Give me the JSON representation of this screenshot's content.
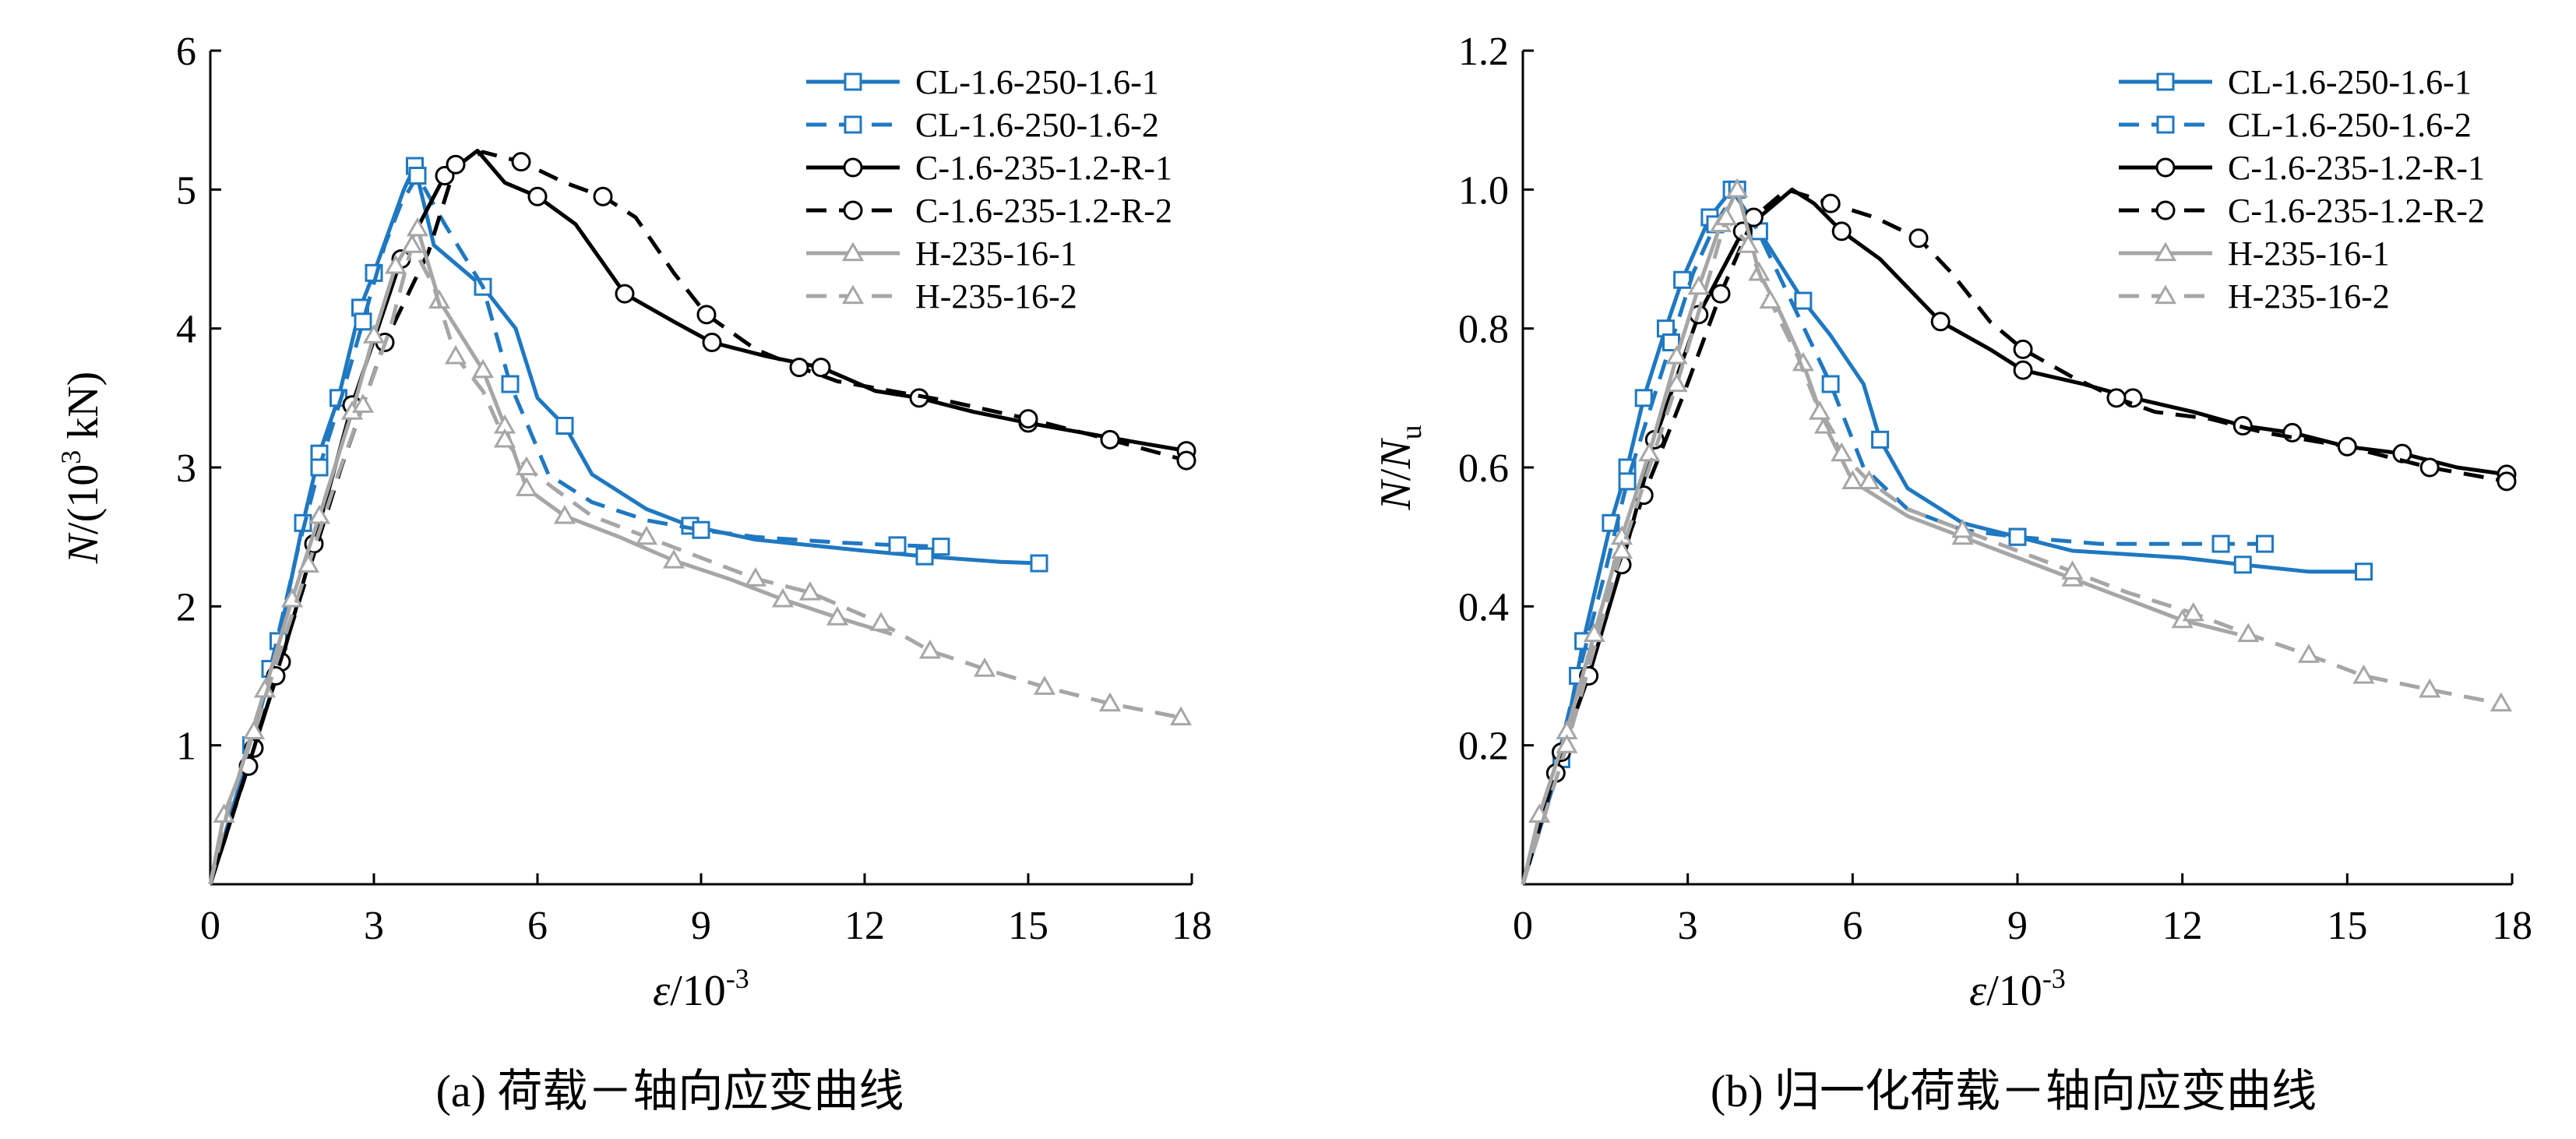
{
  "chart_data": [
    {
      "type": "line",
      "panel": "a",
      "caption": "(a) 荷载－轴向应变曲线",
      "xlabel": "ε/10⁻³",
      "ylabel": "N/(10³kN)",
      "xlim": [
        0,
        18
      ],
      "ylim": [
        0,
        6
      ],
      "xticks": [
        "0",
        "3",
        "6",
        "9",
        "12",
        "15",
        "18"
      ],
      "yticks": [
        "1",
        "2",
        "3",
        "4",
        "5",
        "6"
      ],
      "legend_position": "top-right",
      "series": [
        {
          "name": "CL-1.6-250-1.6-1",
          "color": "#1f78c1",
          "dash": "solid",
          "marker": "square",
          "x": [
            0,
            0.75,
            1.25,
            1.7,
            2.0,
            2.35,
            2.75,
            3.0,
            3.55,
            3.75,
            4.1,
            5.0,
            5.6,
            6.0,
            6.5,
            7.0,
            8.0,
            8.8,
            10,
            12,
            13.1,
            14.5,
            15.2
          ],
          "y": [
            0,
            1.0,
            1.75,
            2.6,
            3.1,
            3.5,
            4.15,
            4.4,
            5.0,
            5.17,
            4.6,
            4.3,
            4.0,
            3.5,
            3.3,
            2.95,
            2.7,
            2.58,
            2.48,
            2.4,
            2.36,
            2.32,
            2.31
          ],
          "marker_idx": [
            1,
            2,
            3,
            4,
            5,
            6,
            7,
            9,
            11,
            14,
            17,
            20,
            22
          ]
        },
        {
          "name": "CL-1.6-250-1.6-2",
          "color": "#1f78c1",
          "dash": "dash",
          "marker": "square",
          "x": [
            0,
            0.7,
            1.1,
            1.6,
            2.0,
            2.4,
            2.8,
            3.2,
            3.5,
            3.8,
            4.3,
            5.0,
            5.5,
            6.2,
            7.0,
            8.0,
            9.0,
            10.0,
            11.5,
            12.6,
            13.4
          ],
          "y": [
            0,
            0.95,
            1.55,
            2.4,
            3.0,
            3.5,
            4.05,
            4.6,
            4.9,
            5.1,
            4.75,
            4.3,
            3.6,
            2.95,
            2.75,
            2.62,
            2.55,
            2.5,
            2.46,
            2.44,
            2.43
          ],
          "marker_idx": [
            2,
            4,
            6,
            9,
            12,
            16,
            19,
            20
          ]
        },
        {
          "name": "C-1.6-235-1.2-R-1",
          "color": "#000000",
          "dash": "solid",
          "marker": "circle",
          "x": [
            0,
            0.8,
            1.3,
            1.9,
            2.6,
            3.5,
            4.3,
            4.9,
            5.4,
            6.0,
            6.7,
            7.6,
            8.5,
            9.2,
            10.2,
            11.2,
            12.2,
            13.0,
            14.0,
            15.0,
            16.0,
            17.0,
            17.9
          ],
          "y": [
            0,
            0.98,
            1.6,
            2.45,
            3.45,
            4.5,
            5.1,
            5.28,
            5.05,
            4.95,
            4.75,
            4.25,
            4.05,
            3.9,
            3.8,
            3.72,
            3.55,
            3.5,
            3.4,
            3.32,
            3.25,
            3.18,
            3.12
          ],
          "marker_idx": [
            1,
            2,
            3,
            4,
            5,
            6,
            9,
            11,
            13,
            15,
            17,
            19,
            22
          ]
        },
        {
          "name": "C-1.6-235-1.2-R-2",
          "color": "#000000",
          "dash": "dash",
          "marker": "circle",
          "x": [
            0,
            0.7,
            1.2,
            1.8,
            2.4,
            3.2,
            4.0,
            4.5,
            5.0,
            5.7,
            6.5,
            7.2,
            7.8,
            8.5,
            9.1,
            10.0,
            10.8,
            11.5,
            12.5,
            13.5,
            15.0,
            16.5,
            17.9
          ],
          "y": [
            0,
            0.85,
            1.5,
            2.25,
            3.0,
            3.9,
            4.55,
            5.18,
            5.27,
            5.2,
            5.05,
            4.95,
            4.8,
            4.4,
            4.1,
            3.85,
            3.72,
            3.62,
            3.55,
            3.48,
            3.35,
            3.2,
            3.05
          ],
          "marker_idx": [
            1,
            2,
            5,
            7,
            9,
            11,
            14,
            16,
            20,
            21,
            22
          ]
        },
        {
          "name": "H-235-16-1",
          "color": "#a6a6a6",
          "dash": "solid",
          "marker": "triangle",
          "x": [
            0,
            0.25,
            0.5,
            1.0,
            1.5,
            2.0,
            2.6,
            3.0,
            3.4,
            3.8,
            4.2,
            4.6,
            5.0,
            5.4,
            5.8,
            6.5,
            7.5,
            8.5,
            9.5,
            10.5,
            11.5,
            12.5
          ],
          "y": [
            0,
            0.5,
            0.75,
            1.4,
            2.05,
            2.65,
            3.4,
            3.95,
            4.45,
            4.72,
            4.2,
            3.95,
            3.7,
            3.3,
            2.85,
            2.65,
            2.5,
            2.33,
            2.2,
            2.05,
            1.92,
            1.8
          ],
          "marker_idx": [
            1,
            3,
            4,
            5,
            6,
            7,
            8,
            9,
            10,
            12,
            13,
            14,
            15,
            17,
            19,
            20
          ]
        },
        {
          "name": "H-235-16-2",
          "color": "#a6a6a6",
          "dash": "dash",
          "marker": "triangle",
          "x": [
            0,
            0.3,
            0.8,
            1.3,
            1.8,
            2.3,
            2.8,
            3.3,
            3.7,
            4.1,
            4.5,
            5.0,
            5.4,
            5.8,
            6.3,
            7.0,
            8.0,
            9.0,
            10.0,
            11.0,
            12.3,
            13.2,
            14.2,
            15.3,
            16.5,
            17.8
          ],
          "y": [
            0,
            0.5,
            1.1,
            1.7,
            2.3,
            2.9,
            3.45,
            4.0,
            4.6,
            4.3,
            3.8,
            3.55,
            3.2,
            3.0,
            2.85,
            2.65,
            2.5,
            2.35,
            2.2,
            2.1,
            1.88,
            1.68,
            1.55,
            1.42,
            1.3,
            1.2
          ],
          "marker_idx": [
            2,
            4,
            6,
            8,
            10,
            12,
            13,
            16,
            18,
            19,
            20,
            21,
            22,
            23,
            24,
            25
          ]
        }
      ]
    },
    {
      "type": "line",
      "panel": "b",
      "caption": "(b) 归一化荷载－轴向应变曲线",
      "xlabel": "ε/10⁻³",
      "ylabel": "N/Nu",
      "xlim": [
        0,
        18
      ],
      "ylim": [
        0,
        1.2
      ],
      "xticks": [
        "0",
        "3",
        "6",
        "9",
        "12",
        "15",
        "18"
      ],
      "yticks": [
        "0.2",
        "0.4",
        "0.6",
        "0.8",
        "1.0",
        "1.2"
      ],
      "legend_position": "top-right",
      "series": [
        {
          "name": "CL-1.6-250-1.6-1",
          "color": "#1f78c1",
          "dash": "solid",
          "marker": "square",
          "x": [
            0,
            0.7,
            1.1,
            1.6,
            1.9,
            2.2,
            2.6,
            2.9,
            3.4,
            3.8,
            4.3,
            5.1,
            5.6,
            6.2,
            6.5,
            7.0,
            8.0,
            9.0,
            10.0,
            12.0,
            13.1,
            14.3,
            15.3
          ],
          "y": [
            0,
            0.18,
            0.35,
            0.52,
            0.6,
            0.7,
            0.8,
            0.87,
            0.96,
            1.0,
            0.94,
            0.84,
            0.79,
            0.72,
            0.64,
            0.57,
            0.52,
            0.5,
            0.48,
            0.47,
            0.46,
            0.45,
            0.45
          ],
          "marker_idx": [
            1,
            2,
            3,
            4,
            5,
            6,
            7,
            8,
            9,
            10,
            11,
            14,
            17,
            20,
            22
          ]
        },
        {
          "name": "CL-1.6-250-1.6-2",
          "color": "#1f78c1",
          "dash": "dash",
          "marker": "square",
          "x": [
            0,
            0.6,
            1.0,
            1.5,
            1.9,
            2.3,
            2.7,
            3.1,
            3.5,
            3.9,
            4.4,
            5.0,
            5.6,
            6.2,
            7.0,
            8.0,
            9.0,
            10.5,
            12.0,
            12.7,
            13.5
          ],
          "y": [
            0,
            0.17,
            0.3,
            0.45,
            0.58,
            0.68,
            0.78,
            0.88,
            0.95,
            1.0,
            0.92,
            0.82,
            0.72,
            0.6,
            0.54,
            0.51,
            0.5,
            0.49,
            0.49,
            0.49,
            0.49
          ],
          "marker_idx": [
            2,
            4,
            6,
            8,
            9,
            12,
            16,
            19,
            20
          ]
        },
        {
          "name": "C-1.6-235-1.2-R-1",
          "color": "#000000",
          "dash": "solid",
          "marker": "circle",
          "x": [
            0,
            0.7,
            1.2,
            1.8,
            2.4,
            3.2,
            4.0,
            4.9,
            5.3,
            5.8,
            6.5,
            7.6,
            8.5,
            9.1,
            10.2,
            11.1,
            12.2,
            13.1,
            14.0,
            15.0,
            16.0,
            17.0,
            17.9
          ],
          "y": [
            0,
            0.19,
            0.3,
            0.46,
            0.64,
            0.82,
            0.94,
            1.0,
            0.98,
            0.94,
            0.9,
            0.81,
            0.77,
            0.74,
            0.72,
            0.7,
            0.68,
            0.66,
            0.65,
            0.63,
            0.62,
            0.6,
            0.59
          ],
          "marker_idx": [
            1,
            2,
            3,
            4,
            5,
            6,
            9,
            11,
            13,
            15,
            17,
            18,
            20,
            22
          ]
        },
        {
          "name": "C-1.6-235-1.2-R-2",
          "color": "#000000",
          "dash": "dash",
          "marker": "circle",
          "x": [
            0,
            0.6,
            1.1,
            1.6,
            2.2,
            2.9,
            3.6,
            4.2,
            4.8,
            5.6,
            6.4,
            7.2,
            7.8,
            8.5,
            9.1,
            10.0,
            10.8,
            11.5,
            12.5,
            13.5,
            15.0,
            16.5,
            17.9
          ],
          "y": [
            0,
            0.16,
            0.3,
            0.43,
            0.56,
            0.7,
            0.85,
            0.96,
            1.0,
            0.98,
            0.96,
            0.93,
            0.88,
            0.81,
            0.77,
            0.73,
            0.7,
            0.68,
            0.67,
            0.65,
            0.63,
            0.6,
            0.58
          ],
          "marker_idx": [
            1,
            4,
            6,
            7,
            9,
            11,
            14,
            16,
            20,
            21,
            22
          ]
        },
        {
          "name": "H-235-16-1",
          "color": "#a6a6a6",
          "dash": "solid",
          "marker": "triangle",
          "x": [
            0,
            0.3,
            0.8,
            1.3,
            1.8,
            2.3,
            2.8,
            3.2,
            3.6,
            3.9,
            4.3,
            4.7,
            5.1,
            5.5,
            6.0,
            7.0,
            8.0,
            9.0,
            10.0,
            11.0,
            12.0,
            13.0
          ],
          "y": [
            0,
            0.1,
            0.22,
            0.36,
            0.5,
            0.62,
            0.76,
            0.86,
            0.95,
            1.0,
            0.88,
            0.82,
            0.75,
            0.66,
            0.58,
            0.53,
            0.5,
            0.47,
            0.44,
            0.41,
            0.38,
            0.36
          ],
          "marker_idx": [
            1,
            2,
            3,
            4,
            5,
            6,
            7,
            8,
            9,
            10,
            12,
            13,
            14,
            16,
            18,
            20
          ]
        },
        {
          "name": "H-235-16-2",
          "color": "#a6a6a6",
          "dash": "dash",
          "marker": "triangle",
          "x": [
            0,
            0.4,
            0.8,
            1.3,
            1.8,
            2.3,
            2.8,
            3.3,
            3.7,
            4.1,
            4.5,
            5.0,
            5.4,
            5.8,
            6.3,
            7.0,
            8.0,
            9.0,
            10.0,
            11.0,
            12.2,
            13.2,
            14.3,
            15.3,
            16.5,
            17.8
          ],
          "y": [
            0,
            0.1,
            0.2,
            0.34,
            0.48,
            0.6,
            0.72,
            0.85,
            0.96,
            0.92,
            0.84,
            0.76,
            0.68,
            0.62,
            0.58,
            0.54,
            0.51,
            0.48,
            0.45,
            0.42,
            0.39,
            0.36,
            0.33,
            0.3,
            0.28,
            0.26
          ],
          "marker_idx": [
            2,
            4,
            6,
            8,
            9,
            10,
            12,
            13,
            14,
            16,
            18,
            20,
            21,
            22,
            23,
            24,
            25
          ]
        }
      ]
    }
  ]
}
